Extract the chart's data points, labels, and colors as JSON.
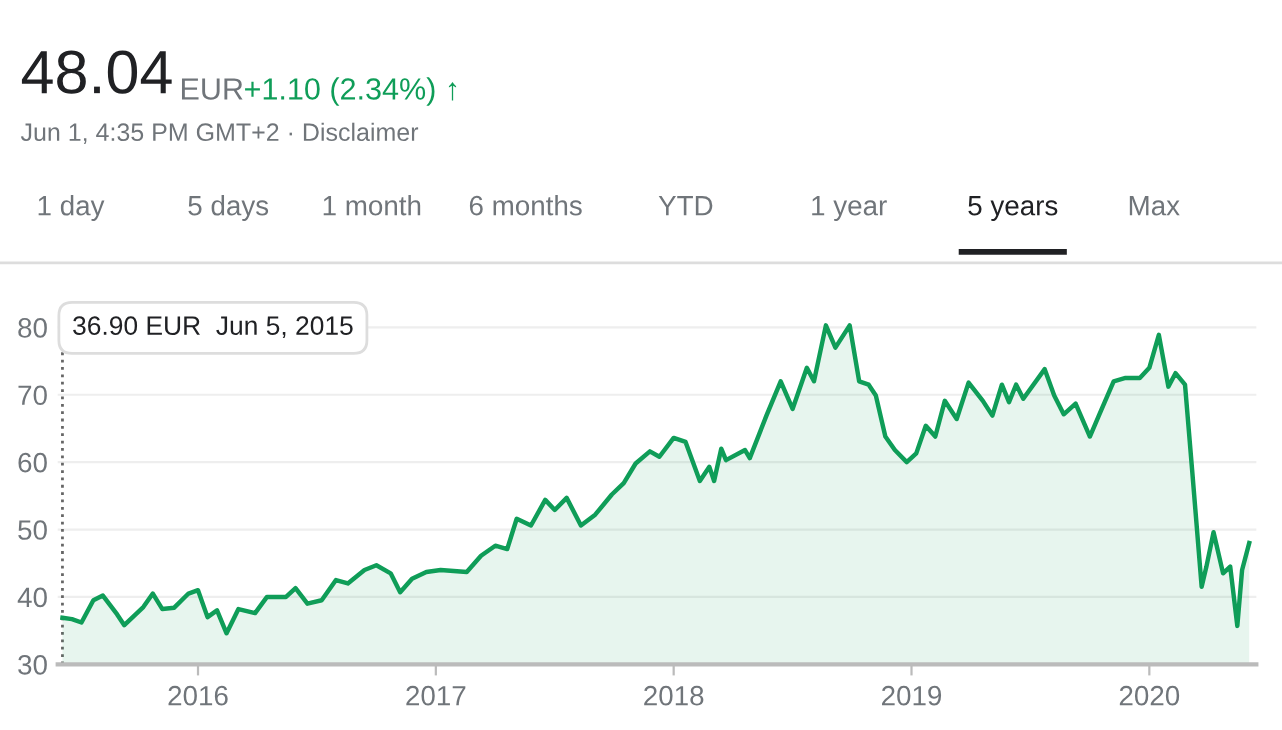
{
  "chart_data": {
    "type": "area",
    "color": "#0f9d58",
    "annotations": [
      "48.04",
      "EUR",
      "+1.10 (2.34%) ↑",
      "Jun 1, 4:35 PM GMT+2 · Disclaimer",
      "1 day",
      "5 days",
      "1 month",
      "6 months",
      "YTD",
      "1 year",
      "5 years",
      "Max",
      "36.90 EUR  Jun 5, 2015"
    ],
    "ref_lines": [
      {
        "axis": "x",
        "value": 2015.43,
        "label": null,
        "color": "#666666",
        "line_style": "dotted"
      }
    ],
    "series": [
      {
        "x": [
          2015.43,
          2015.47,
          2015.51,
          2015.56,
          2015.6,
          2015.66,
          2015.69,
          2015.77,
          2015.81,
          2015.85,
          2015.9,
          2015.96,
          2016.0,
          2016.04,
          2016.08,
          2016.12,
          2016.17,
          2016.24,
          2016.29,
          2016.37,
          2016.41,
          2016.46,
          2016.52,
          2016.58,
          2016.63,
          2016.7,
          2016.75,
          2016.81,
          2016.85,
          2016.9,
          2016.96,
          2017.02,
          2017.13,
          2017.19,
          2017.25,
          2017.3,
          2017.34,
          2017.4,
          2017.46,
          2017.5,
          2017.55,
          2017.61,
          2017.67,
          2017.74,
          2017.79,
          2017.84,
          2017.9,
          2017.94,
          2018.0,
          2018.05,
          2018.11,
          2018.15,
          2018.17,
          2018.2,
          2018.22,
          2018.3,
          2018.32,
          2018.39,
          2018.45,
          2018.5,
          2018.56,
          2018.59,
          2018.64,
          2018.68,
          2018.74,
          2018.78,
          2018.82,
          2018.85,
          2018.89,
          2018.93,
          2018.98,
          2019.02,
          2019.06,
          2019.1,
          2019.14,
          2019.19,
          2019.24,
          2019.3,
          2019.34,
          2019.38,
          2019.41,
          2019.44,
          2019.47,
          2019.56,
          2019.6,
          2019.64,
          2019.69,
          2019.75,
          2019.79,
          2019.85,
          2019.9,
          2019.96,
          2020.0,
          2020.04,
          2020.08,
          2020.11,
          2020.15,
          2020.18,
          2020.22,
          2020.24,
          2020.27,
          2020.31,
          2020.34,
          2020.37,
          2020.39,
          2020.42
        ],
        "values": [
          36.9,
          36.7,
          36.2,
          39.5,
          40.2,
          37.4,
          35.8,
          38.5,
          40.5,
          38.2,
          38.4,
          40.5,
          41,
          37,
          38,
          34.6,
          38.2,
          37.6,
          40,
          40,
          41.3,
          39,
          39.5,
          42.5,
          42,
          44,
          44.7,
          43.5,
          40.7,
          42.7,
          43.7,
          44,
          43.7,
          46.1,
          47.6,
          47.1,
          51.6,
          50.6,
          54.4,
          52.9,
          54.7,
          50.6,
          52.2,
          55.2,
          56.9,
          59.8,
          61.6,
          60.8,
          63.6,
          63,
          57.2,
          59.3,
          57.2,
          62,
          60.3,
          61.8,
          60.6,
          66.9,
          72,
          67.9,
          74,
          72,
          80.3,
          77,
          80.3,
          72,
          71.5,
          69.9,
          63.8,
          61.8,
          60,
          61.3,
          65.4,
          63.8,
          69.1,
          66.4,
          71.8,
          69.1,
          66.9,
          71.5,
          68.9,
          71.5,
          69.4,
          73.8,
          69.9,
          67.1,
          68.7,
          63.8,
          67.1,
          72,
          72.5,
          72.5,
          74,
          78.9,
          71.2,
          73.2,
          71.5,
          58.8,
          41.5,
          44.5,
          49.6,
          43.5,
          44.5,
          35.7,
          44,
          48
        ]
      }
    ],
    "xlim": [
      2015.41,
      2020.45
    ],
    "ylim": [
      30,
      82
    ],
    "xticks": [
      2016,
      2017,
      2018,
      2019,
      2020
    ],
    "yticks": [
      30,
      40,
      50,
      60,
      70,
      80
    ],
    "grid": "y",
    "legend": false
  }
}
